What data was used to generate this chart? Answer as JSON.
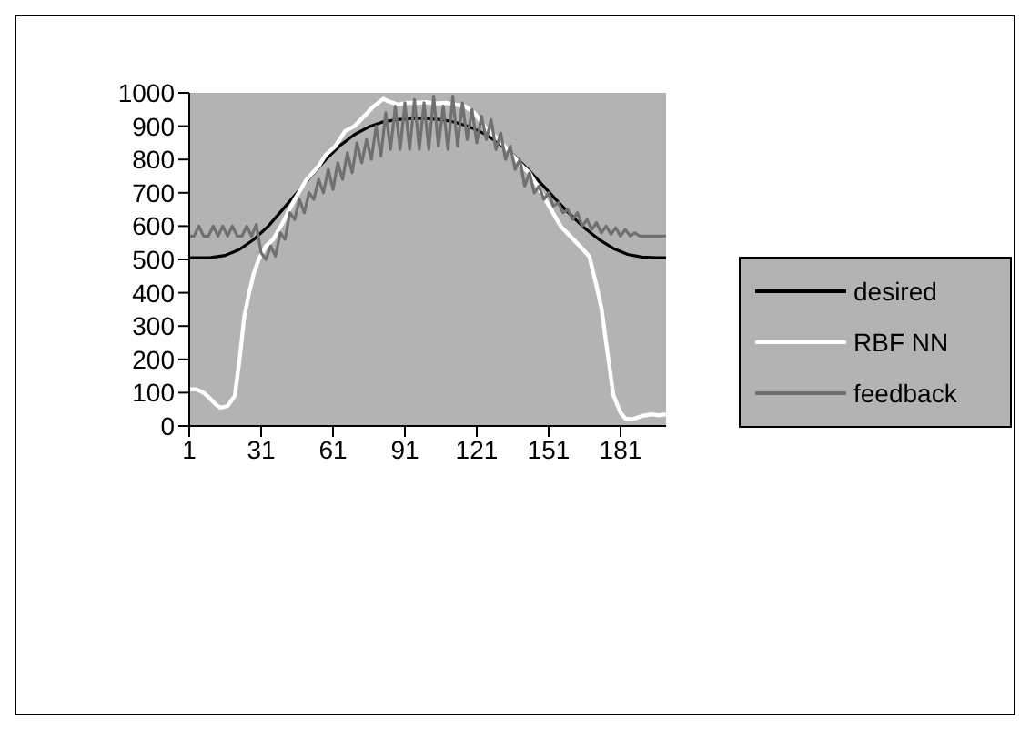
{
  "chart_data": {
    "type": "line",
    "xlim": [
      1,
      200
    ],
    "xticks": [
      1,
      31,
      61,
      91,
      121,
      151,
      181
    ],
    "ylim": [
      0,
      1000
    ],
    "yticks": [
      0,
      100,
      200,
      300,
      400,
      500,
      600,
      700,
      800,
      900,
      1000
    ],
    "grid": false,
    "legend": "right",
    "marker": "none",
    "line_style": "solid",
    "series": [
      {
        "name": "desired",
        "color": "#000000",
        "x": [
          1,
          10,
          16,
          22,
          28,
          34,
          40,
          46,
          52,
          58,
          64,
          70,
          76,
          82,
          88,
          94,
          100,
          106,
          112,
          118,
          124,
          130,
          136,
          142,
          148,
          154,
          160,
          166,
          172,
          178,
          184,
          190,
          196,
          200
        ],
        "values": [
          505,
          506,
          512,
          530,
          560,
          600,
          650,
          700,
          752,
          800,
          842,
          875,
          898,
          913,
          920,
          923,
          923,
          920,
          912,
          898,
          878,
          850,
          815,
          773,
          727,
          680,
          635,
          594,
          560,
          533,
          515,
          507,
          505,
          505
        ]
      },
      {
        "name": "RBF NN",
        "color": "#ffffff",
        "x": [
          1,
          4,
          7,
          10,
          12,
          14,
          17,
          20,
          22,
          24,
          26,
          28,
          30,
          33,
          36,
          40,
          45,
          50,
          55,
          58,
          62,
          66,
          70,
          74,
          78,
          82,
          84,
          88,
          92,
          96,
          100,
          104,
          108,
          112,
          116,
          120,
          125,
          130,
          135,
          140,
          143,
          148,
          152,
          156,
          160,
          164,
          168,
          171,
          173,
          175,
          178,
          181,
          183,
          186,
          190,
          194,
          197,
          200
        ],
        "values": [
          110,
          110,
          100,
          80,
          65,
          55,
          60,
          90,
          200,
          330,
          400,
          460,
          500,
          540,
          560,
          610,
          680,
          740,
          780,
          814,
          840,
          885,
          900,
          930,
          960,
          982,
          975,
          965,
          970,
          970,
          972,
          968,
          970,
          965,
          960,
          940,
          892,
          860,
          820,
          780,
          760,
          700,
          650,
          600,
          570,
          540,
          509,
          420,
          355,
          250,
          93,
          40,
          22,
          20,
          30,
          35,
          32,
          35
        ]
      },
      {
        "name": "feedback",
        "color": "#707070",
        "x": [
          1,
          3,
          5,
          7,
          9,
          11,
          13,
          15,
          17,
          19,
          21,
          23,
          25,
          27,
          29,
          31,
          33,
          35,
          37,
          39,
          41,
          43,
          45,
          47,
          49,
          51,
          53,
          55,
          57,
          59,
          61,
          63,
          65,
          67,
          69,
          71,
          73,
          75,
          77,
          79,
          81,
          83,
          85,
          87,
          89,
          91,
          93,
          95,
          97,
          99,
          101,
          103,
          105,
          107,
          109,
          111,
          113,
          115,
          117,
          119,
          121,
          123,
          125,
          127,
          129,
          131,
          133,
          135,
          137,
          139,
          141,
          143,
          145,
          147,
          149,
          151,
          153,
          155,
          157,
          159,
          161,
          163,
          165,
          167,
          169,
          171,
          173,
          175,
          177,
          179,
          181,
          183,
          185,
          187,
          189,
          191,
          195,
          200
        ],
        "values": [
          570,
          570,
          600,
          570,
          570,
          600,
          570,
          600,
          570,
          600,
          570,
          570,
          600,
          570,
          605,
          520,
          500,
          540,
          510,
          580,
          560,
          640,
          620,
          680,
          640,
          700,
          680,
          740,
          700,
          770,
          710,
          790,
          740,
          820,
          760,
          850,
          790,
          860,
          800,
          900,
          810,
          940,
          830,
          960,
          830,
          970,
          830,
          980,
          830,
          970,
          830,
          990,
          840,
          960,
          830,
          990,
          840,
          970,
          860,
          950,
          850,
          930,
          860,
          920,
          830,
          880,
          800,
          840,
          770,
          800,
          720,
          760,
          700,
          720,
          680,
          700,
          660,
          670,
          640,
          650,
          620,
          640,
          600,
          620,
          590,
          610,
          580,
          600,
          575,
          595,
          570,
          590,
          570,
          580,
          570,
          570,
          570,
          570
        ]
      }
    ]
  }
}
